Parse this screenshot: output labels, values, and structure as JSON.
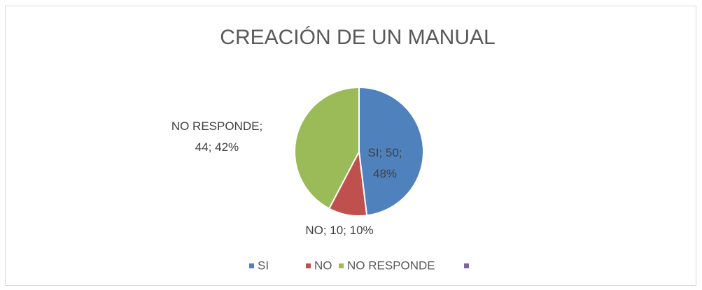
{
  "chart_data": {
    "type": "pie",
    "title": "CREACIÓN DE UN MANUAL",
    "categories": [
      "SI",
      "NO",
      "NO RESPONDE",
      null
    ],
    "values": [
      50,
      10,
      44,
      null
    ],
    "value_labels": [
      "SI; 50; 48%",
      "NO; 10; 10%",
      "NO RESPONDE; 44; 42%",
      null
    ],
    "colors": [
      "#4f81bd",
      "#c0504d",
      "#9bbb59",
      "#8064a2"
    ],
    "legend": "bottom"
  }
}
